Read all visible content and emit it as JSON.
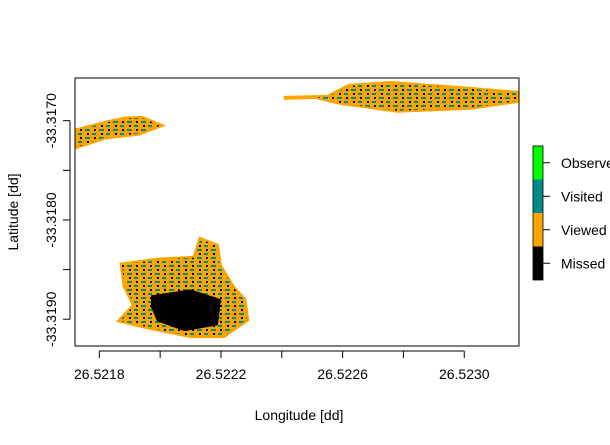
{
  "chart_data": {
    "type": "heatmap",
    "title": "",
    "xlabel": "Longitude [dd]",
    "ylabel": "Latitude [dd]",
    "xlim": [
      26.52172,
      26.52318
    ],
    "ylim": [
      -33.31927,
      -33.31657
    ],
    "x_ticks": [
      {
        "value": 26.5218,
        "label": "26.5218"
      },
      {
        "value": 26.522,
        "label": ""
      },
      {
        "value": 26.5222,
        "label": "26.5222"
      },
      {
        "value": 26.5224,
        "label": ""
      },
      {
        "value": 26.5226,
        "label": "26.5226"
      },
      {
        "value": 26.5228,
        "label": ""
      },
      {
        "value": 26.523,
        "label": "26.5230"
      }
    ],
    "y_ticks": [
      {
        "value": -33.317,
        "label": "-33.3170"
      },
      {
        "value": -33.3175,
        "label": ""
      },
      {
        "value": -33.318,
        "label": "-33.3180"
      },
      {
        "value": -33.3185,
        "label": ""
      },
      {
        "value": -33.319,
        "label": "-33.3190"
      }
    ],
    "legend": {
      "placement": "right",
      "entries": [
        {
          "label": "Observed",
          "color": "#00ff00"
        },
        {
          "label": "Visited",
          "color": "#008b8b"
        },
        {
          "label": "Viewed",
          "color": "#ffa500"
        },
        {
          "label": "Missed",
          "color": "#000000"
        }
      ]
    },
    "regions": [
      {
        "name": "north-west patch",
        "outline": [
          [
            26.52172,
            -33.31709
          ],
          [
            26.52182,
            -33.31701
          ],
          [
            26.52188,
            -33.31697
          ],
          [
            26.52194,
            -33.31696
          ],
          [
            26.52201,
            -33.31705
          ],
          [
            26.52193,
            -33.31714
          ],
          [
            26.52182,
            -33.31718
          ],
          [
            26.52172,
            -33.31728
          ]
        ],
        "missed_cores": []
      },
      {
        "name": "north-east patch",
        "outline": [
          [
            26.52241,
            -33.31676
          ],
          [
            26.52255,
            -33.31675
          ],
          [
            26.52262,
            -33.31664
          ],
          [
            26.52276,
            -33.31661
          ],
          [
            26.52302,
            -33.31667
          ],
          [
            26.52318,
            -33.31671
          ],
          [
            26.52318,
            -33.31681
          ],
          [
            26.52302,
            -33.31688
          ],
          [
            26.52278,
            -33.31691
          ],
          [
            26.52259,
            -33.31683
          ],
          [
            26.52251,
            -33.31677
          ],
          [
            26.52241,
            -33.31678
          ]
        ],
        "missed_cores": []
      },
      {
        "name": "south-west patch",
        "outline": [
          [
            26.52187,
            -33.31844
          ],
          [
            26.52199,
            -33.31839
          ],
          [
            26.52211,
            -33.31837
          ],
          [
            26.52213,
            -33.31818
          ],
          [
            26.52219,
            -33.31825
          ],
          [
            26.5222,
            -33.31846
          ],
          [
            26.52224,
            -33.31866
          ],
          [
            26.52228,
            -33.3188
          ],
          [
            26.52229,
            -33.31901
          ],
          [
            26.52221,
            -33.31918
          ],
          [
            26.5221,
            -33.31918
          ],
          [
            26.52197,
            -33.3191
          ],
          [
            26.52186,
            -33.31902
          ],
          [
            26.52191,
            -33.31886
          ],
          [
            26.52188,
            -33.31867
          ]
        ],
        "missed_cores": [
          [
            [
              26.52197,
              -33.31876
            ],
            [
              26.5221,
              -33.3187
            ],
            [
              26.5222,
              -33.3188
            ],
            [
              26.52219,
              -33.31906
            ],
            [
              26.52208,
              -33.31912
            ],
            [
              26.52199,
              -33.31902
            ],
            [
              26.52197,
              -33.31888
            ]
          ]
        ]
      }
    ]
  }
}
